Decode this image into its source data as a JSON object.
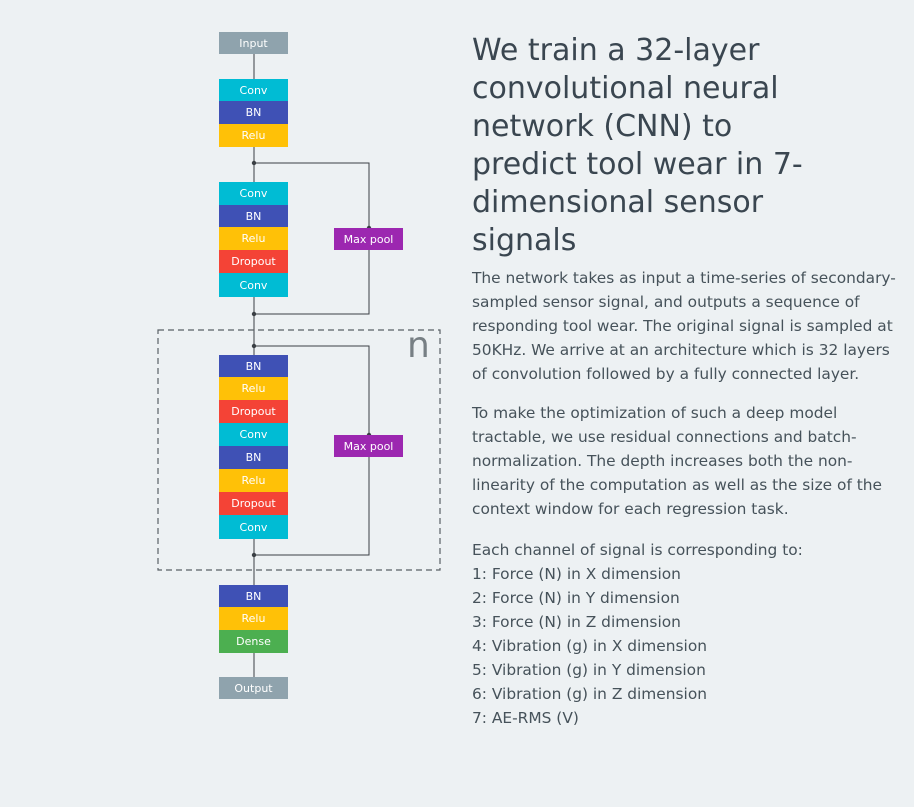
{
  "diagram": {
    "input_label": "Input",
    "output_label": "Output",
    "maxpool_label": "Max pool",
    "repeat_label": "n",
    "block1": [
      "Conv",
      "BN",
      "Relu"
    ],
    "block2": [
      "Conv",
      "BN",
      "Relu",
      "Dropout",
      "Conv"
    ],
    "block3": [
      "BN",
      "Relu",
      "Dropout",
      "Conv",
      "BN",
      "Relu",
      "Dropout",
      "Conv"
    ],
    "block4": [
      "BN",
      "Relu",
      "Dense"
    ],
    "colors": {
      "conv": "#00bcd4",
      "bn": "#3f51b5",
      "relu": "#ffc107",
      "dropout": "#f44336",
      "dense": "#4caf50",
      "maxpool": "#9c27b0",
      "io": "#8fa3ad"
    }
  },
  "text": {
    "heading": "We train a 32-layer convolutional neural network (CNN) to predict tool wear in 7-dimensional sensor signals",
    "para1": "The network takes as input a time-series of secondary-sampled sensor signal, and outputs a sequence of responding tool wear. The original signal is sampled at 50KHz. We arrive at an architecture which is 32 layers of convolution followed by a fully connected layer.",
    "para2": "To make the optimization of such a deep model tractable, we use residual connections and batch-normalization. The depth increases both the non-linearity of the computation as well as the size of the context window for each regression task.",
    "channels_intro": "Each channel of signal is corresponding to:",
    "channels": [
      "1: Force (N) in X dimension",
      "2: Force (N) in Y dimension",
      "3: Force (N) in Z dimension",
      "4: Vibration (g) in X dimension",
      "5: Vibration (g) in Y dimension",
      "6: Vibration (g) in Z dimension",
      "7: AE-RMS (V)"
    ]
  }
}
